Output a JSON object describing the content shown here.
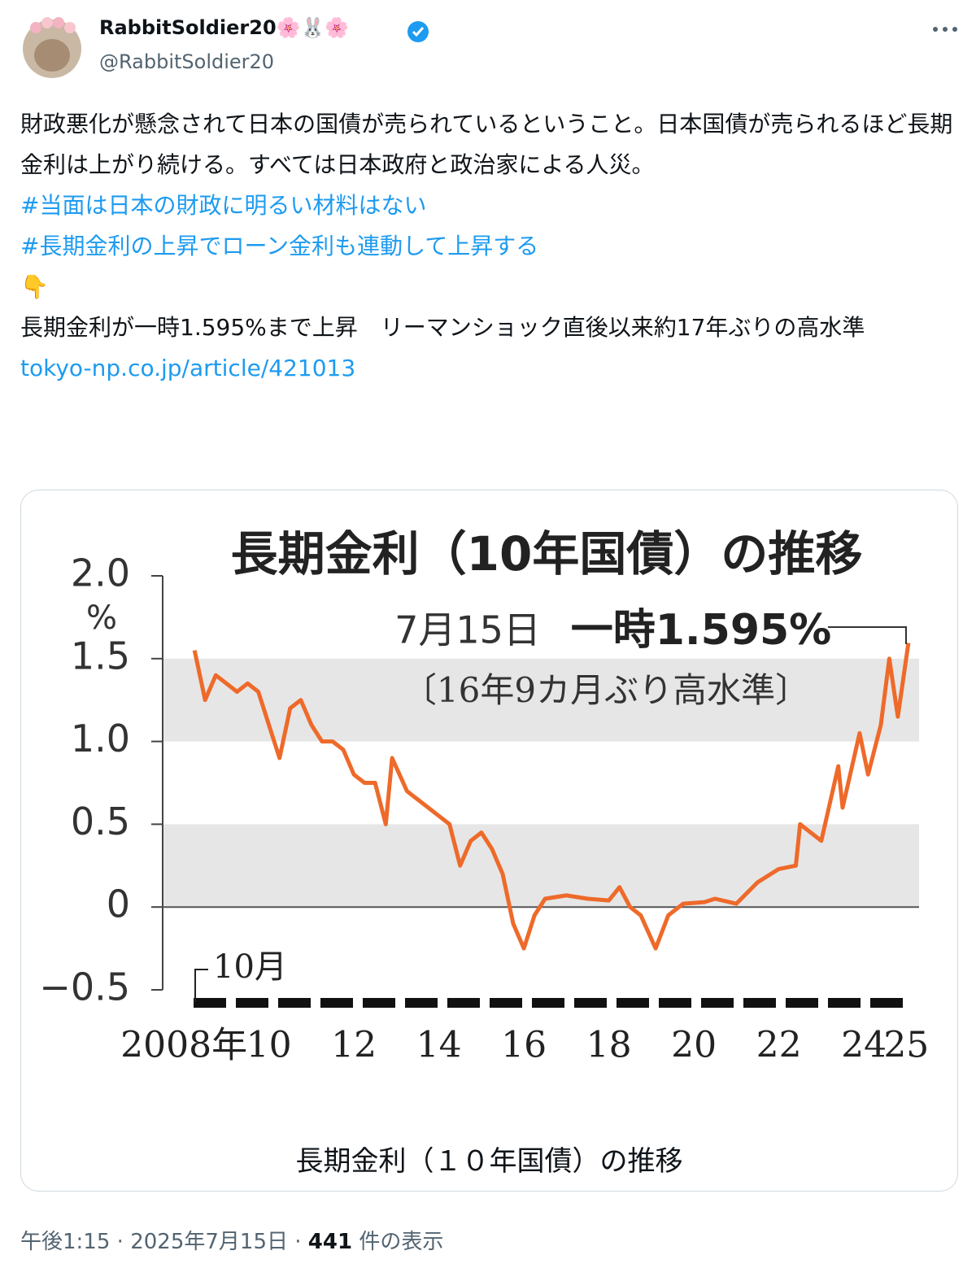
{
  "header": {
    "name": "RabbitSoldier20🌸🐰🌸",
    "handle": "@RabbitSoldier20"
  },
  "body": {
    "paragraph": "財政悪化が懸念されて日本の国債が売られているということ。日本国債が売られるほど長期金利は上がり続ける。すべては日本政府と政治家による人災。",
    "hashtags": [
      "#当面は日本の財政に明るい材料はない",
      "#長期金利の上昇でローン金利も連動して上昇する"
    ],
    "pointer": "👇",
    "headline": "長期金利が一時1.595%まで上昇　リーマンショック直後以来約17年ぶりの高水準",
    "link": "tokyo-np.co.jp/article/421013"
  },
  "chart_data": {
    "type": "line",
    "title": "長期金利（10年国債）の推移",
    "y_label": "%",
    "annotations": [
      "7月15日",
      "一時1.595%",
      "〔16年9カ月ぶり高水準〕",
      "10月"
    ],
    "x": [
      2008.75,
      2009.0,
      2009.25,
      2009.5,
      2009.75,
      2010.0,
      2010.25,
      2010.5,
      2010.75,
      2011.0,
      2011.25,
      2011.5,
      2011.75,
      2012.0,
      2012.25,
      2012.5,
      2012.75,
      2013.0,
      2013.25,
      2013.4,
      2013.75,
      2014.0,
      2014.5,
      2014.75,
      2015.0,
      2015.25,
      2015.5,
      2015.75,
      2016.0,
      2016.25,
      2016.5,
      2016.75,
      2017.0,
      2017.5,
      2018.0,
      2018.5,
      2018.75,
      2019.0,
      2019.25,
      2019.6,
      2019.9,
      2020.25,
      2020.75,
      2021.0,
      2021.5,
      2022.0,
      2022.5,
      2022.9,
      2023.0,
      2023.5,
      2023.9,
      2024.0,
      2024.4,
      2024.6,
      2024.9,
      2025.1,
      2025.3,
      2025.55
    ],
    "values": [
      1.55,
      1.25,
      1.4,
      1.35,
      1.3,
      1.35,
      1.3,
      1.1,
      0.9,
      1.2,
      1.25,
      1.1,
      1.0,
      1.0,
      0.95,
      0.8,
      0.75,
      0.75,
      0.5,
      0.9,
      0.7,
      0.65,
      0.55,
      0.5,
      0.25,
      0.4,
      0.45,
      0.35,
      0.2,
      -0.1,
      -0.25,
      -0.05,
      0.05,
      0.07,
      0.05,
      0.04,
      0.12,
      0.0,
      -0.05,
      -0.25,
      -0.05,
      0.02,
      0.03,
      0.05,
      0.02,
      0.15,
      0.23,
      0.25,
      0.5,
      0.4,
      0.85,
      0.6,
      1.05,
      0.8,
      1.1,
      1.5,
      1.15,
      1.595
    ],
    "color": "#ee6a2a",
    "bands": [
      [
        1.0,
        1.5
      ],
      [
        0,
        0.5
      ]
    ],
    "xlim": [
      2008.0,
      2025.8
    ],
    "ylim": [
      -0.5,
      2.0
    ],
    "xticks": [
      {
        "value": 2008.5,
        "label": "2008年"
      },
      2010.5,
      2012.5,
      2014.5,
      2016.5,
      2018.5,
      2020.5,
      2022.5,
      2024.5,
      2025.5
    ],
    "xtick_labels": [
      "2008年",
      "10",
      "12",
      "14",
      "16",
      "18",
      "20",
      "22",
      "24",
      "25"
    ],
    "yticks": [
      {
        "value": 2,
        "label": "2.0"
      },
      1.5,
      {
        "value": 1,
        "label": "1.0"
      },
      0.5,
      0,
      {
        "value": -0.5,
        "label": "−0.5"
      }
    ]
  },
  "card": {
    "caption": "長期金利（１０年国債）の推移"
  },
  "footer": {
    "time": "午後1:15",
    "separator": "·",
    "date": "2025年7月15日",
    "views": 441,
    "views_label": "件の表示"
  }
}
